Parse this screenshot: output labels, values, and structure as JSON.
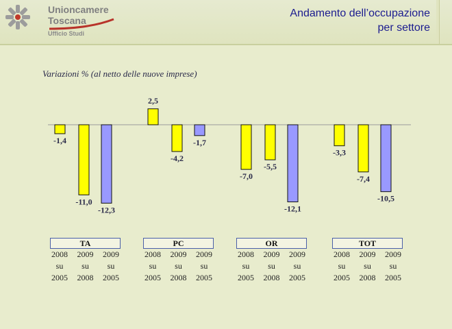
{
  "header": {
    "org_line1": "Unioncamere",
    "org_line2": "Toscana",
    "office": "Ufficio Studi",
    "title_line1": "Andamento dell’occupazione",
    "title_line2": "per settore"
  },
  "chart_subtitle": "Variazioni % (al netto delle nuove imprese)",
  "colors": {
    "bar_2008": "#ffff00",
    "bar_2009": "#ffff00",
    "bar_2009_2005": "#9999ff",
    "bg": "#e8eccd"
  },
  "period_columns": [
    {
      "line1": "2008",
      "line2": "su",
      "line3": "2005"
    },
    {
      "line1": "2009",
      "line2": "su",
      "line3": "2008"
    },
    {
      "line1": "2009",
      "line2": "su",
      "line3": "2005"
    }
  ],
  "chart_data": {
    "type": "bar",
    "categories": [
      "TA",
      "PC",
      "OR",
      "TOT"
    ],
    "series": [
      {
        "values": [
          -1.4,
          2.5,
          -7.0,
          -3.3
        ],
        "labels": [
          "-1,4",
          "2,5",
          "-7,0",
          "-3,3"
        ]
      },
      {
        "values": [
          -11.0,
          -4.2,
          -5.5,
          -7.4
        ],
        "labels": [
          "-11,0",
          "-4,2",
          "-5,5",
          "-7,4"
        ]
      },
      {
        "values": [
          -12.3,
          -1.7,
          -12.1,
          -10.5
        ],
        "labels": [
          "-12,3",
          "-1,7",
          "-12,1",
          "-10,5"
        ]
      }
    ]
  }
}
